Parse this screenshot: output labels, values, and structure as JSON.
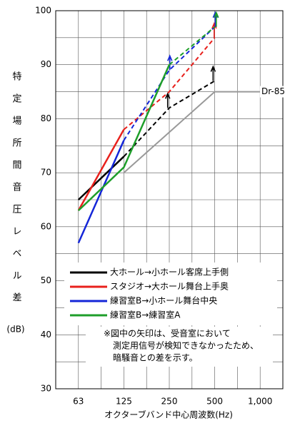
{
  "chart_data": {
    "type": "line",
    "y_label": "特定場所間音圧レベル差",
    "y_unit": "(dB)",
    "x_label": "オクターブバンド中心周波数(Hz)",
    "categories": [
      "63",
      "125",
      "250",
      "500",
      "1,000"
    ],
    "ylim": [
      30,
      100
    ],
    "yticks": [
      30,
      40,
      50,
      60,
      70,
      80,
      90,
      100
    ],
    "yminor": [
      35,
      45,
      55,
      65,
      75,
      85,
      95
    ],
    "grid": true,
    "series": [
      {
        "name": "大ホール→小ホール客席上手側",
        "color": "#000000",
        "values": [
          65,
          73,
          82,
          87,
          null
        ],
        "dashed_from": 1,
        "arrows": [
          2,
          3
        ]
      },
      {
        "name": "スタジオ→大ホール舞台上手奥",
        "color": "#e8201c",
        "values": [
          63,
          78,
          85,
          95,
          null
        ],
        "dashed_from": 1,
        "arrows": [
          3
        ]
      },
      {
        "name": "練習室B→小ホール舞台中央",
        "color": "#1426d8",
        "values": [
          57,
          76,
          89,
          97,
          null
        ],
        "dashed_from": 1,
        "arrows": [
          2,
          3
        ]
      },
      {
        "name": "練習室B→練習室A",
        "color": "#1e9e2a",
        "values": [
          63,
          71,
          90,
          97,
          null
        ],
        "dashed_from": 2,
        "arrows": [
          3
        ]
      }
    ],
    "reference": {
      "name": "Dr-85",
      "color": "#999999",
      "values": [
        null,
        70,
        77.5,
        85,
        85
      ]
    },
    "note": [
      "※図中の矢印は、受音室において",
      "測定用信号が検知できなかったため、",
      "暗騒音との差を示す。"
    ]
  }
}
